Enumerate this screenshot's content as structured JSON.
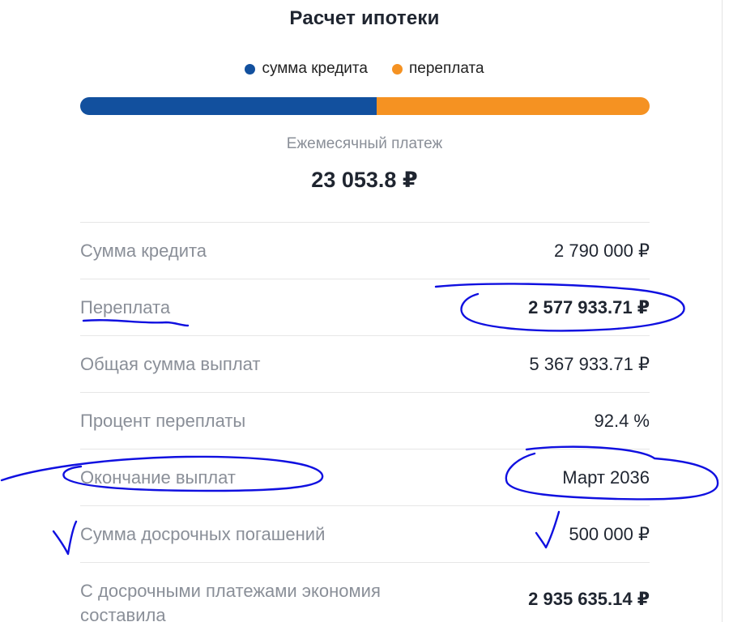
{
  "title": "Расчет ипотеки",
  "legend": [
    {
      "label": "сумма кредита",
      "color": "#12509e"
    },
    {
      "label": "переплата",
      "color": "#f59222"
    }
  ],
  "progress": {
    "credit_fraction": 0.52,
    "overpay_fraction": 0.48,
    "credit_color": "#12509e",
    "overpay_color": "#f59222"
  },
  "monthly": {
    "label": "Ежемесячный платеж",
    "value": "23 053.8 ₽"
  },
  "rows": [
    {
      "label": "Сумма кредита",
      "value": "2 790 000 ₽",
      "bold": false
    },
    {
      "label": "Переплата",
      "value": "2 577 933.71 ₽",
      "bold": true
    },
    {
      "label": "Общая сумма выплат",
      "value": "5 367 933.71 ₽",
      "bold": false
    },
    {
      "label": "Процент переплаты",
      "value": "92.4 %",
      "bold": false
    },
    {
      "label": "Окончание выплат",
      "value": "Март 2036",
      "bold": false
    },
    {
      "label": "Сумма досрочных погашений",
      "value": "500 000 ₽",
      "bold": false
    },
    {
      "label": "С досрочными платежами экономия составила",
      "value": "2 935 635.14 ₽",
      "bold": true
    }
  ],
  "annotation_color": "#1010e0"
}
